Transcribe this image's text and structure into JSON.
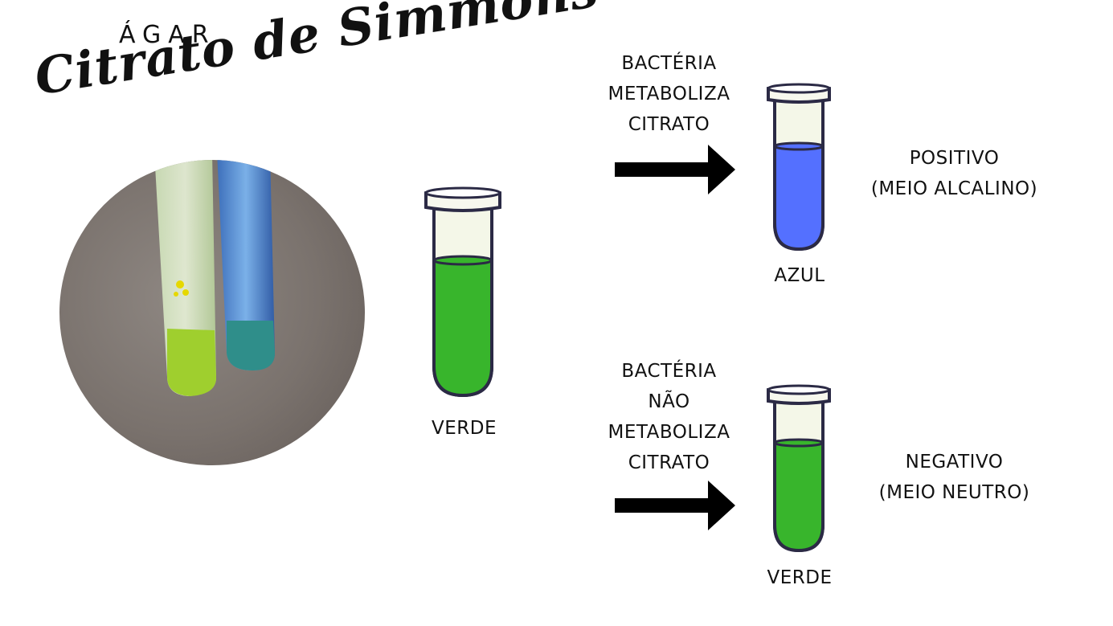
{
  "title": {
    "kicker": "ÁGAR",
    "main": "Citrato de Simmons"
  },
  "initial": {
    "tube_color": "#38b52c",
    "label": "VERDE"
  },
  "outcomes": [
    {
      "condition": [
        "BACTÉRIA",
        "METABOLIZA",
        "CITRATO"
      ],
      "tube_color": "#5470ff",
      "color_label": "AZUL",
      "result": [
        "POSITIVO",
        "(MEIO ALCALINO)"
      ]
    },
    {
      "condition": [
        "BACTÉRIA",
        "NÃO",
        "METABOLIZA",
        "CITRATO"
      ],
      "tube_color": "#38b52c",
      "color_label": "VERDE",
      "result": [
        "NEGATIVO",
        "(MEIO NEUTRO)"
      ]
    }
  ],
  "photo_icon": "test-tubes-photo"
}
